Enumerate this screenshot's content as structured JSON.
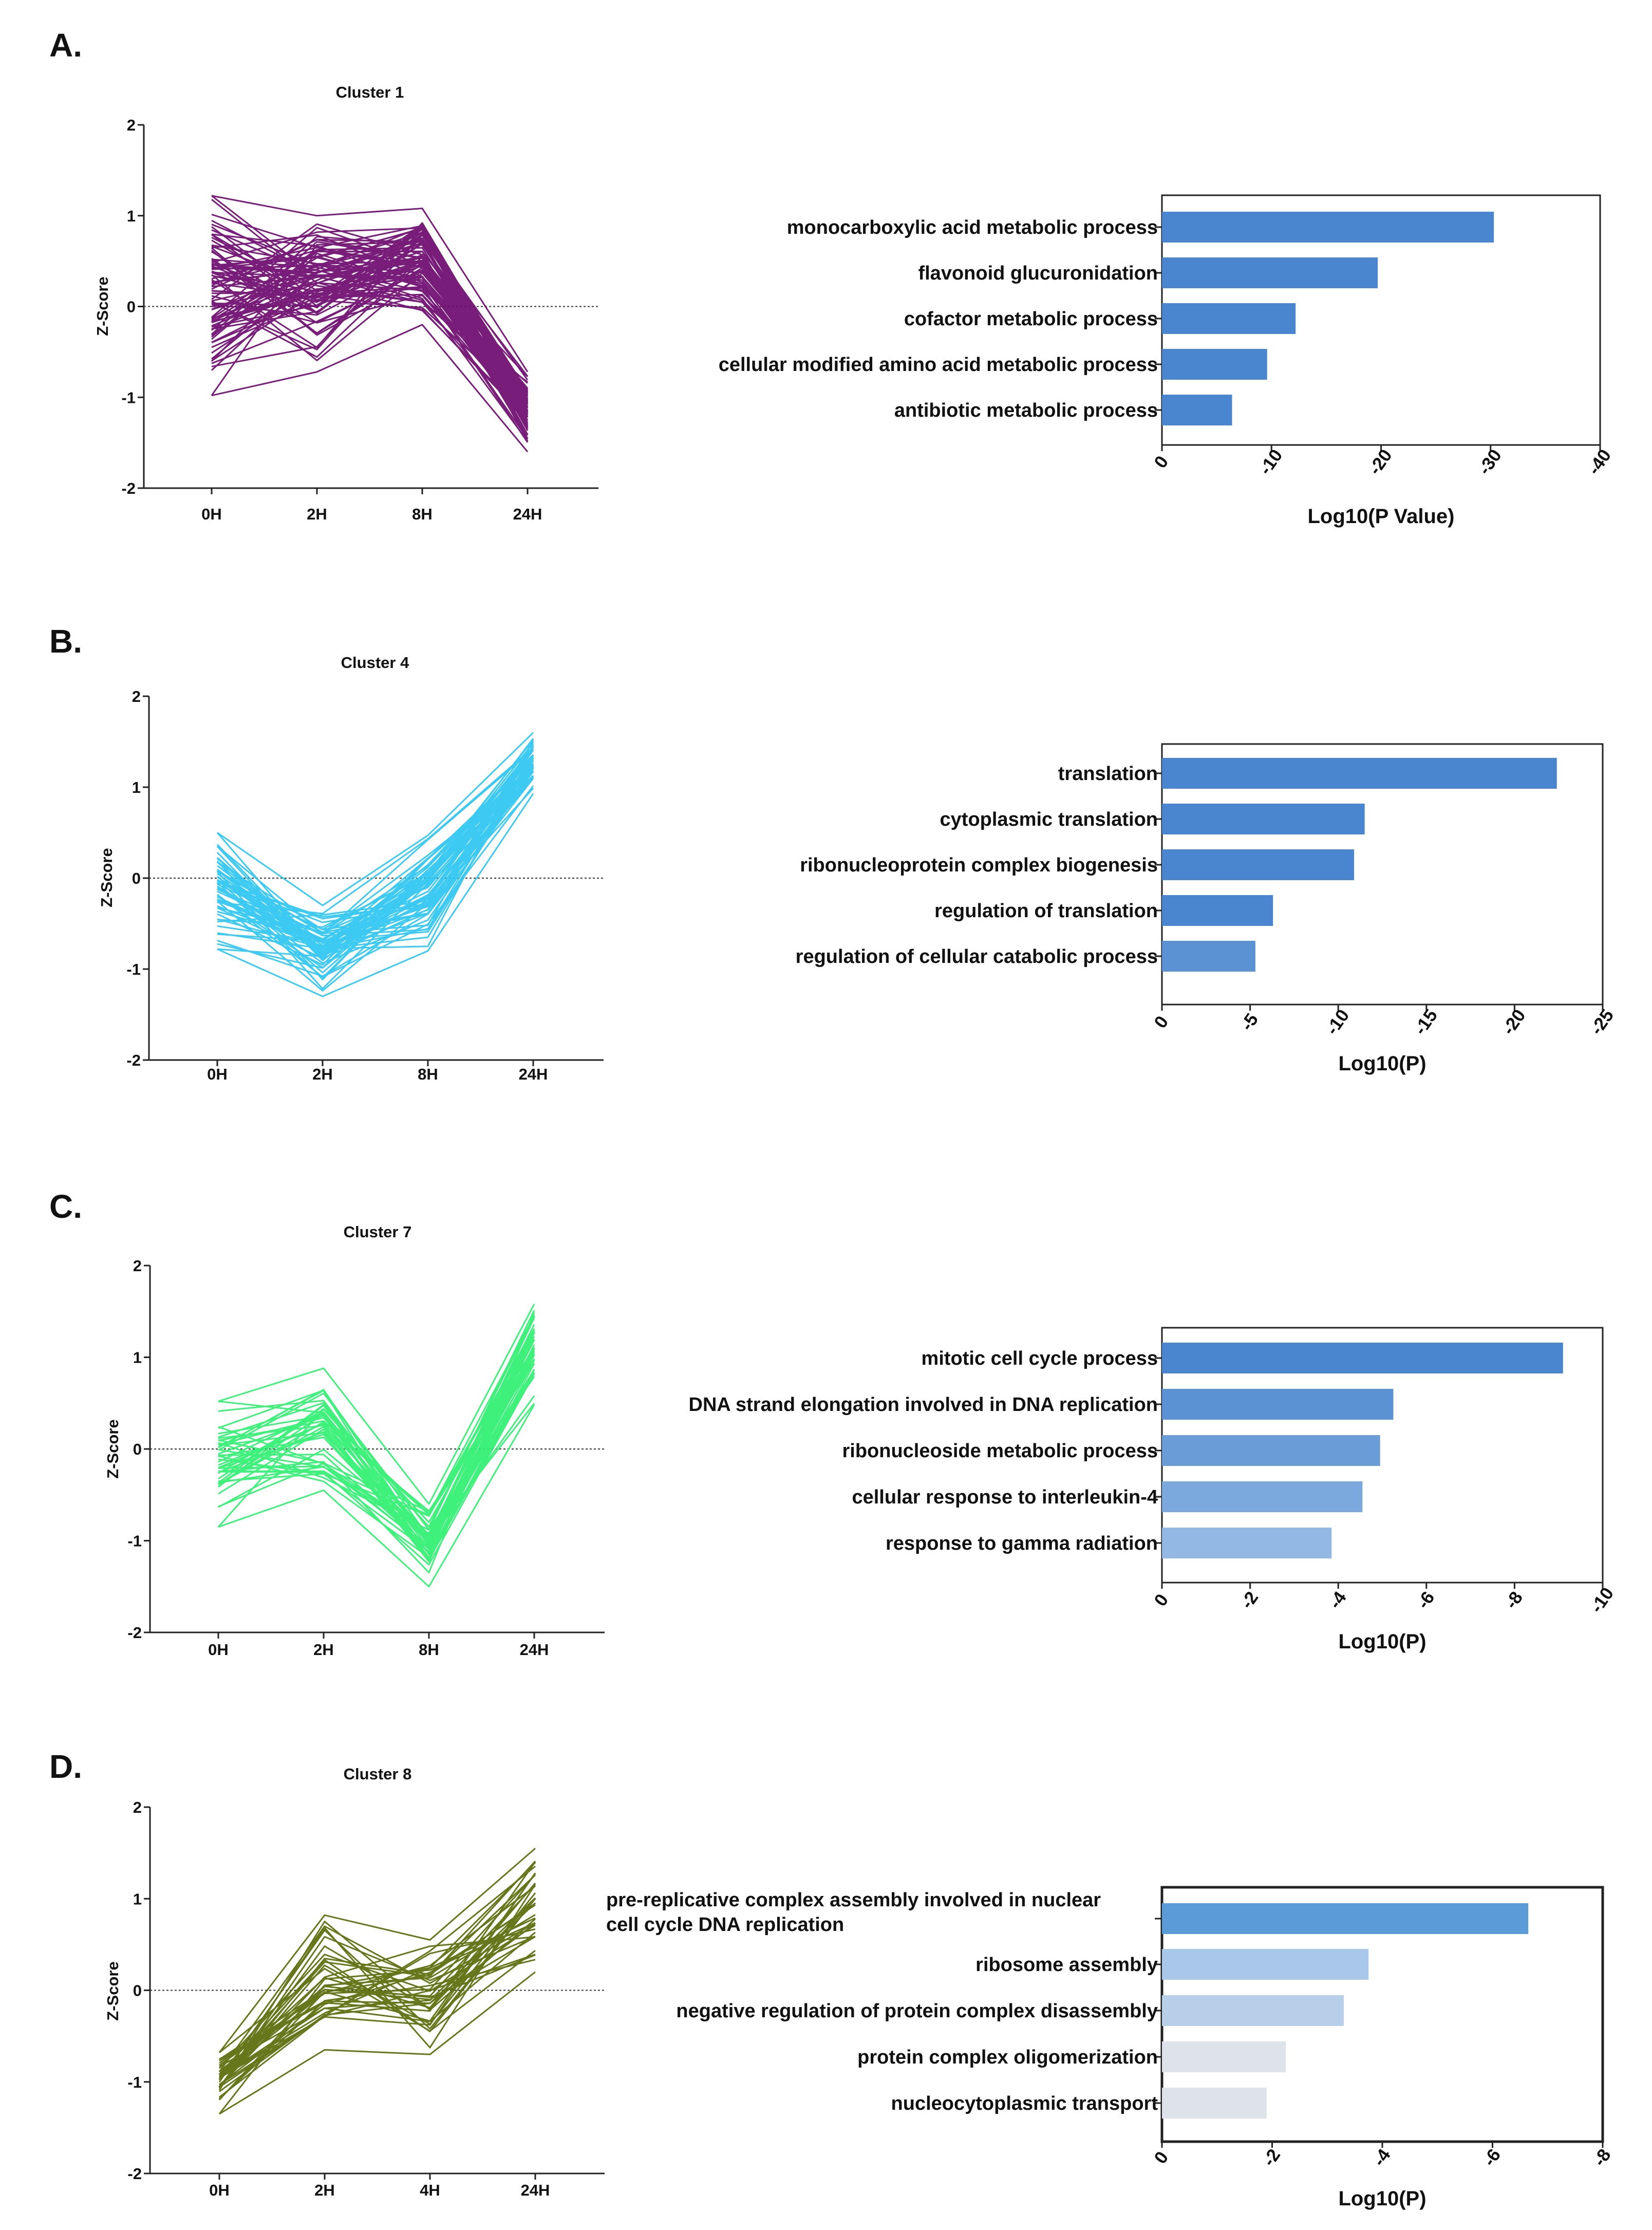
{
  "chart_data": [
    {
      "type": "line",
      "panel": "A.",
      "title": "Cluster 1",
      "xlabel": "",
      "ylabel": "Z-Score",
      "categories": [
        "0H",
        "2H",
        "8H",
        "24H"
      ],
      "yticks": [
        "2",
        "1",
        "0",
        "-1",
        "-2"
      ],
      "ylim": [
        -2,
        2
      ],
      "color": "#6d0a6e",
      "series_summary": {
        "n_lines": 90,
        "min": [
          -0.98,
          -0.72,
          -0.2,
          -1.6
        ],
        "max": [
          1.22,
          1.0,
          1.08,
          -0.72
        ]
      }
    },
    {
      "type": "bar",
      "panel": "A.",
      "title": "",
      "xlabel": "Log10(P Value)",
      "categories": [
        "monocarboxylic acid metabolic process",
        "flavonoid glucuronidation",
        "cofactor metabolic process",
        "cellular modified amino acid metabolic process",
        "antibiotic metabolic process"
      ],
      "values": [
        -30.3,
        -19.7,
        -12.2,
        -9.6,
        -6.4
      ],
      "xticks": [
        "0",
        "-10",
        "-20",
        "-30",
        "-40"
      ],
      "xlim": [
        0,
        -40
      ],
      "bar_colors": [
        "#4a86cf",
        "#4a86cf",
        "#4a86cf",
        "#4a86cf",
        "#4a86cf"
      ]
    },
    {
      "type": "line",
      "panel": "B.",
      "title": "Cluster 4",
      "xlabel": "",
      "ylabel": "Z-Score",
      "categories": [
        "0H",
        "2H",
        "8H",
        "24H"
      ],
      "yticks": [
        "2",
        "1",
        "0",
        "-1",
        "-2"
      ],
      "ylim": [
        -2,
        2
      ],
      "color": "#2cc6f2",
      "series_summary": {
        "n_lines": 60,
        "min": [
          -0.78,
          -1.3,
          -0.8,
          0.93
        ],
        "max": [
          0.5,
          -0.3,
          0.47,
          1.6
        ]
      }
    },
    {
      "type": "bar",
      "panel": "B.",
      "title": "",
      "xlabel": "Log10(P)",
      "categories": [
        "translation",
        "cytoplasmic translation",
        "ribonucleoprotein complex biogenesis",
        "regulation of translation",
        "regulation of cellular catabolic process"
      ],
      "values": [
        -22.4,
        -11.5,
        -10.9,
        -6.3,
        -5.3
      ],
      "xticks": [
        "0",
        "-5",
        "-10",
        "-15",
        "-20",
        "-25"
      ],
      "xlim": [
        0,
        -25
      ],
      "bar_colors": [
        "#4a86cf",
        "#4a86cf",
        "#4a86cf",
        "#4a86cf",
        "#5b92d4"
      ]
    },
    {
      "type": "line",
      "panel": "C.",
      "title": "Cluster 7",
      "xlabel": "",
      "ylabel": "Z-Score",
      "categories": [
        "0H",
        "2H",
        "8H",
        "24H"
      ],
      "yticks": [
        "2",
        "1",
        "0",
        "-1",
        "-2"
      ],
      "ylim": [
        -2,
        2
      ],
      "color": "#2ef070",
      "series_summary": {
        "n_lines": 45,
        "min": [
          -0.85,
          -0.45,
          -1.5,
          0.48
        ],
        "max": [
          0.52,
          0.88,
          -0.6,
          1.58
        ]
      }
    },
    {
      "type": "bar",
      "panel": "C.",
      "title": "",
      "xlabel": "Log10(P)",
      "categories": [
        "mitotic cell cycle process",
        "DNA strand elongation involved in DNA replication",
        "ribonucleoside metabolic process",
        "cellular response to interleukin-4",
        "response to gamma radiation"
      ],
      "values": [
        -9.1,
        -5.25,
        -4.95,
        -4.55,
        -3.85
      ],
      "xticks": [
        "0",
        "-2",
        "-4",
        "-6",
        "-8",
        "-10"
      ],
      "xlim": [
        0,
        -10
      ],
      "bar_colors": [
        "#4a86cf",
        "#5b92d4",
        "#6a9cd8",
        "#7ba8dd",
        "#93b8e3"
      ]
    },
    {
      "type": "line",
      "panel": "D.",
      "title": "Cluster 8",
      "xlabel": "",
      "ylabel": "Z-Score",
      "categories": [
        "0H",
        "2H",
        "4H",
        "24H"
      ],
      "yticks": [
        "2",
        "1",
        "0",
        "-1",
        "-2"
      ],
      "ylim": [
        -2,
        2
      ],
      "color": "#5a6b08",
      "series_summary": {
        "n_lines": 38,
        "min": [
          -1.35,
          -0.65,
          -0.7,
          0.2
        ],
        "max": [
          -0.68,
          0.82,
          0.55,
          1.55
        ]
      }
    },
    {
      "type": "bar",
      "panel": "D.",
      "title": "",
      "xlabel": "Log10(P)",
      "categories": [
        "pre-replicative complex assembly involved in nuclear cell cycle DNA replication",
        "ribosome assembly",
        "negative regulation of protein complex disassembly",
        "protein complex oligomerization",
        "nucleocytoplasmic transport"
      ],
      "category_lines": [
        [
          "pre-replicative complex assembly involved in nuclear",
          "cell cycle DNA replication"
        ],
        [
          "ribosome assembly"
        ],
        [
          "negative regulation of protein complex disassembly"
        ],
        [
          "protein complex oligomerization"
        ],
        [
          "nucleocytoplasmic transport"
        ]
      ],
      "values": [
        -6.65,
        -3.75,
        -3.3,
        -2.25,
        -1.9
      ],
      "xticks": [
        "0",
        "-2",
        "-4",
        "-6",
        "-8"
      ],
      "xlim": [
        0,
        -8
      ],
      "bar_colors": [
        "#5b9bd8",
        "#a9c7e8",
        "#b7cfe9",
        "#dde3e8",
        "#dde3e8"
      ]
    }
  ]
}
